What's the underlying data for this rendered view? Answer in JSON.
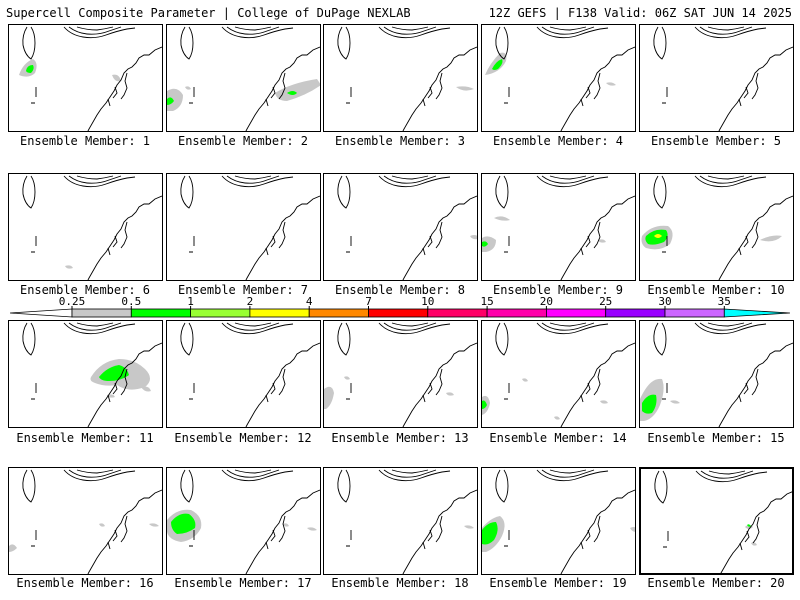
{
  "header": {
    "left": "Supercell Composite Parameter | College of DuPage NEXLAB",
    "right": "12Z GEFS | F138 Valid: 06Z SAT JUN 14 2025"
  },
  "colorbar": {
    "labels": [
      "0.25",
      "0.5",
      "1",
      "2",
      "4",
      "7",
      "10",
      "15",
      "20",
      "25",
      "30",
      "35"
    ],
    "colors": [
      "#c8c8c8",
      "#00ff00",
      "#99ff33",
      "#ffff00",
      "#ff8800",
      "#ff0000",
      "#ff0066",
      "#ff00aa",
      "#ff00ff",
      "#9900ff",
      "#cc66ff",
      "#00ffff"
    ]
  },
  "panels": [
    {
      "label": "Ensemble Member: 1"
    },
    {
      "label": "Ensemble Member: 2"
    },
    {
      "label": "Ensemble Member: 3"
    },
    {
      "label": "Ensemble Member: 4"
    },
    {
      "label": "Ensemble Member: 5"
    },
    {
      "label": "Ensemble Member: 6"
    },
    {
      "label": "Ensemble Member: 7"
    },
    {
      "label": "Ensemble Member: 8"
    },
    {
      "label": "Ensemble Member: 9"
    },
    {
      "label": "Ensemble Member: 10"
    },
    {
      "label": "Ensemble Member: 11"
    },
    {
      "label": "Ensemble Member: 12"
    },
    {
      "label": "Ensemble Member: 13"
    },
    {
      "label": "Ensemble Member: 14"
    },
    {
      "label": "Ensemble Member: 15"
    },
    {
      "label": "Ensemble Member: 16"
    },
    {
      "label": "Ensemble Member: 17"
    },
    {
      "label": "Ensemble Member: 18"
    },
    {
      "label": "Ensemble Member: 19"
    },
    {
      "label": "Ensemble Member: 20"
    }
  ]
}
